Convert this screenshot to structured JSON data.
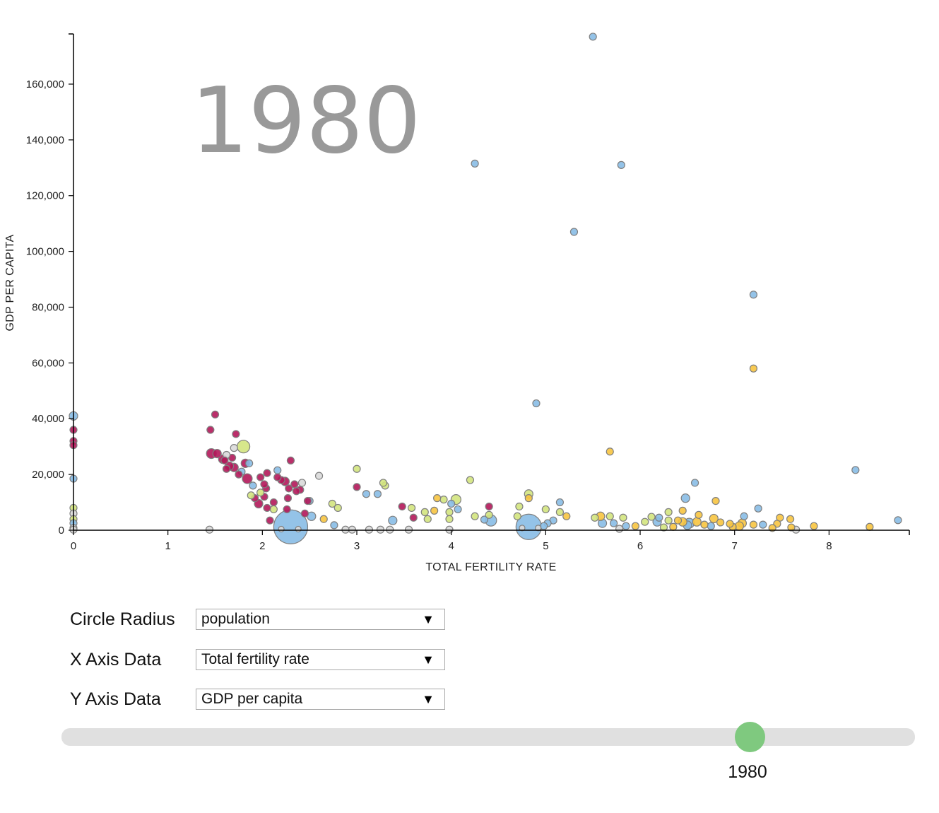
{
  "controls": {
    "radius": {
      "label": "Circle Radius",
      "value": "population"
    },
    "x_axis": {
      "label": "X Axis Data",
      "value": "Total fertility rate"
    },
    "y_axis": {
      "label": "Y Axis Data",
      "value": "GDP per capita"
    },
    "dropdown_icon": "caret-down-icon",
    "slider": {
      "value": "1980",
      "thumb_color": "#7fc97f",
      "track_color": "#e0e0e0"
    }
  },
  "chart_data": {
    "type": "scatter",
    "title": "1980",
    "xlabel": "TOTAL FERTILITY RATE",
    "ylabel": "GDP PER CAPITA",
    "xlim": [
      0,
      8.85
    ],
    "ylim": [
      0,
      178000
    ],
    "x_ticks": [
      0,
      1,
      2,
      3,
      4,
      5,
      6,
      7,
      8
    ],
    "y_ticks": [
      0,
      20000,
      40000,
      60000,
      80000,
      100000,
      120000,
      140000,
      160000
    ],
    "y_tick_labels": [
      "0",
      "20,000",
      "40,000",
      "60,000",
      "80,000",
      "100,000",
      "120,000",
      "140,000",
      "160,000"
    ],
    "grid": false,
    "legend": "none",
    "point_stroke": "#7f7f7f",
    "colors": {
      "blue": "#88bde6",
      "crimson": "#b2185a",
      "lime": "#d3e47e",
      "gray": "#d9d9d9",
      "yellow": "#f7c440"
    },
    "points": [
      {
        "x": 5.5,
        "y": 177000,
        "c": "blue",
        "r": 5
      },
      {
        "x": 4.25,
        "y": 131500,
        "c": "blue",
        "r": 5
      },
      {
        "x": 5.8,
        "y": 131000,
        "c": "blue",
        "r": 5
      },
      {
        "x": 5.3,
        "y": 107000,
        "c": "blue",
        "r": 5
      },
      {
        "x": 7.2,
        "y": 84500,
        "c": "blue",
        "r": 5
      },
      {
        "x": 7.2,
        "y": 58000,
        "c": "yellow",
        "r": 5
      },
      {
        "x": 4.9,
        "y": 45500,
        "c": "blue",
        "r": 5
      },
      {
        "x": 5.68,
        "y": 28200,
        "c": "yellow",
        "r": 5
      },
      {
        "x": 8.28,
        "y": 21600,
        "c": "blue",
        "r": 5
      },
      {
        "x": 8.73,
        "y": 3600,
        "c": "blue",
        "r": 5
      },
      {
        "x": 8.43,
        "y": 1200,
        "c": "yellow",
        "r": 5
      },
      {
        "x": 7.84,
        "y": 1500,
        "c": "yellow",
        "r": 5
      },
      {
        "x": 7.65,
        "y": 200,
        "c": "gray",
        "r": 5
      },
      {
        "x": 7.6,
        "y": 1000,
        "c": "yellow",
        "r": 5
      },
      {
        "x": 7.59,
        "y": 4000,
        "c": "yellow",
        "r": 5
      },
      {
        "x": 7.48,
        "y": 4500,
        "c": "yellow",
        "r": 5
      },
      {
        "x": 7.45,
        "y": 2300,
        "c": "yellow",
        "r": 5
      },
      {
        "x": 7.4,
        "y": 800,
        "c": "yellow",
        "r": 5
      },
      {
        "x": 7.3,
        "y": 2000,
        "c": "blue",
        "r": 5
      },
      {
        "x": 7.25,
        "y": 7800,
        "c": "blue",
        "r": 5
      },
      {
        "x": 7.2,
        "y": 2000,
        "c": "yellow",
        "r": 5
      },
      {
        "x": 7.1,
        "y": 5000,
        "c": "blue",
        "r": 5
      },
      {
        "x": 7.08,
        "y": 2500,
        "c": "yellow",
        "r": 6
      },
      {
        "x": 7.05,
        "y": 1500,
        "c": "yellow",
        "r": 6
      },
      {
        "x": 6.98,
        "y": 1200,
        "c": "yellow",
        "r": 5
      },
      {
        "x": 6.95,
        "y": 2300,
        "c": "yellow",
        "r": 5
      },
      {
        "x": 6.8,
        "y": 10500,
        "c": "yellow",
        "r": 5
      },
      {
        "x": 6.78,
        "y": 4200,
        "c": "yellow",
        "r": 6
      },
      {
        "x": 6.85,
        "y": 2800,
        "c": "yellow",
        "r": 5
      },
      {
        "x": 6.75,
        "y": 1500,
        "c": "blue",
        "r": 5
      },
      {
        "x": 6.68,
        "y": 2000,
        "c": "yellow",
        "r": 5
      },
      {
        "x": 6.62,
        "y": 5500,
        "c": "yellow",
        "r": 5
      },
      {
        "x": 6.6,
        "y": 3000,
        "c": "yellow",
        "r": 6
      },
      {
        "x": 6.58,
        "y": 17000,
        "c": "blue",
        "r": 5
      },
      {
        "x": 6.5,
        "y": 1800,
        "c": "blue",
        "r": 6
      },
      {
        "x": 6.48,
        "y": 11500,
        "c": "blue",
        "r": 6
      },
      {
        "x": 6.45,
        "y": 3000,
        "c": "yellow",
        "r": 6
      },
      {
        "x": 6.45,
        "y": 7000,
        "c": "yellow",
        "r": 5
      },
      {
        "x": 6.4,
        "y": 3500,
        "c": "yellow",
        "r": 5
      },
      {
        "x": 6.35,
        "y": 1200,
        "c": "yellow",
        "r": 5
      },
      {
        "x": 6.3,
        "y": 6500,
        "c": "lime",
        "r": 5
      },
      {
        "x": 6.3,
        "y": 3500,
        "c": "lime",
        "r": 5
      },
      {
        "x": 6.25,
        "y": 1000,
        "c": "lime",
        "r": 5
      },
      {
        "x": 6.2,
        "y": 4500,
        "c": "blue",
        "r": 5
      },
      {
        "x": 6.18,
        "y": 3000,
        "c": "blue",
        "r": 6
      },
      {
        "x": 6.12,
        "y": 4800,
        "c": "lime",
        "r": 5
      },
      {
        "x": 6.05,
        "y": 3000,
        "c": "lime",
        "r": 5
      },
      {
        "x": 5.95,
        "y": 1500,
        "c": "yellow",
        "r": 5
      },
      {
        "x": 5.85,
        "y": 1500,
        "c": "blue",
        "r": 5
      },
      {
        "x": 5.82,
        "y": 4500,
        "c": "lime",
        "r": 5
      },
      {
        "x": 5.78,
        "y": 500,
        "c": "gray",
        "r": 5
      },
      {
        "x": 5.72,
        "y": 2500,
        "c": "blue",
        "r": 5
      },
      {
        "x": 5.68,
        "y": 5000,
        "c": "lime",
        "r": 5
      },
      {
        "x": 5.6,
        "y": 2500,
        "c": "blue",
        "r": 6
      },
      {
        "x": 5.58,
        "y": 5000,
        "c": "yellow",
        "r": 6
      },
      {
        "x": 5.52,
        "y": 4500,
        "c": "lime",
        "r": 5
      },
      {
        "x": 6.52,
        "y": 2500,
        "c": "blue",
        "r": 7
      },
      {
        "x": 4.82,
        "y": 1200,
        "c": "blue",
        "r": 18
      },
      {
        "x": 4.75,
        "y": 800,
        "c": "gray",
        "r": 4
      },
      {
        "x": 4.92,
        "y": 800,
        "c": "gray",
        "r": 4
      },
      {
        "x": 5.22,
        "y": 5000,
        "c": "yellow",
        "r": 5
      },
      {
        "x": 5.15,
        "y": 6500,
        "c": "lime",
        "r": 5
      },
      {
        "x": 5.15,
        "y": 10000,
        "c": "blue",
        "r": 5
      },
      {
        "x": 5.08,
        "y": 3500,
        "c": "blue",
        "r": 5
      },
      {
        "x": 5.02,
        "y": 2500,
        "c": "blue",
        "r": 5
      },
      {
        "x": 4.98,
        "y": 1500,
        "c": "blue",
        "r": 5
      },
      {
        "x": 5.0,
        "y": 7500,
        "c": "lime",
        "r": 5
      },
      {
        "x": 4.82,
        "y": 13000,
        "c": "lime",
        "r": 6
      },
      {
        "x": 4.82,
        "y": 11500,
        "c": "yellow",
        "r": 5
      },
      {
        "x": 4.72,
        "y": 8500,
        "c": "lime",
        "r": 5
      },
      {
        "x": 4.7,
        "y": 5000,
        "c": "lime",
        "r": 5
      },
      {
        "x": 4.42,
        "y": 3500,
        "c": "blue",
        "r": 8
      },
      {
        "x": 4.35,
        "y": 3800,
        "c": "blue",
        "r": 5
      },
      {
        "x": 4.4,
        "y": 5500,
        "c": "lime",
        "r": 5
      },
      {
        "x": 4.4,
        "y": 8500,
        "c": "crimson",
        "r": 5
      },
      {
        "x": 4.2,
        "y": 18000,
        "c": "lime",
        "r": 5
      },
      {
        "x": 4.25,
        "y": 5000,
        "c": "lime",
        "r": 5
      },
      {
        "x": 4.05,
        "y": 11000,
        "c": "lime",
        "r": 7
      },
      {
        "x": 4.07,
        "y": 7500,
        "c": "blue",
        "r": 5
      },
      {
        "x": 4.0,
        "y": 9500,
        "c": "blue",
        "r": 5
      },
      {
        "x": 3.98,
        "y": 6500,
        "c": "lime",
        "r": 5
      },
      {
        "x": 3.98,
        "y": 4000,
        "c": "lime",
        "r": 5
      },
      {
        "x": 3.92,
        "y": 11000,
        "c": "lime",
        "r": 5
      },
      {
        "x": 3.85,
        "y": 11500,
        "c": "yellow",
        "r": 5
      },
      {
        "x": 3.82,
        "y": 7000,
        "c": "yellow",
        "r": 5
      },
      {
        "x": 3.75,
        "y": 4000,
        "c": "lime",
        "r": 5
      },
      {
        "x": 3.72,
        "y": 6500,
        "c": "lime",
        "r": 5
      },
      {
        "x": 3.98,
        "y": 200,
        "c": "gray",
        "r": 5
      },
      {
        "x": 3.58,
        "y": 8000,
        "c": "lime",
        "r": 5
      },
      {
        "x": 3.6,
        "y": 4500,
        "c": "crimson",
        "r": 5
      },
      {
        "x": 3.48,
        "y": 8500,
        "c": "crimson",
        "r": 5
      },
      {
        "x": 3.55,
        "y": 200,
        "c": "gray",
        "r": 5
      },
      {
        "x": 3.38,
        "y": 3500,
        "c": "blue",
        "r": 6
      },
      {
        "x": 3.35,
        "y": 200,
        "c": "gray",
        "r": 5
      },
      {
        "x": 3.3,
        "y": 16000,
        "c": "lime",
        "r": 5
      },
      {
        "x": 3.28,
        "y": 17000,
        "c": "lime",
        "r": 5
      },
      {
        "x": 3.22,
        "y": 13000,
        "c": "blue",
        "r": 5
      },
      {
        "x": 3.25,
        "y": 200,
        "c": "gray",
        "r": 5
      },
      {
        "x": 3.1,
        "y": 13000,
        "c": "blue",
        "r": 5
      },
      {
        "x": 3.13,
        "y": 200,
        "c": "gray",
        "r": 5
      },
      {
        "x": 3.0,
        "y": 22000,
        "c": "lime",
        "r": 5
      },
      {
        "x": 3.0,
        "y": 15500,
        "c": "crimson",
        "r": 5
      },
      {
        "x": 2.95,
        "y": 200,
        "c": "gray",
        "r": 5
      },
      {
        "x": 2.88,
        "y": 200,
        "c": "gray",
        "r": 5
      },
      {
        "x": 2.8,
        "y": 8000,
        "c": "lime",
        "r": 5
      },
      {
        "x": 2.74,
        "y": 9500,
        "c": "lime",
        "r": 5
      },
      {
        "x": 2.76,
        "y": 1800,
        "c": "blue",
        "r": 5
      },
      {
        "x": 2.65,
        "y": 4000,
        "c": "yellow",
        "r": 5
      },
      {
        "x": 2.6,
        "y": 19500,
        "c": "gray",
        "r": 5
      },
      {
        "x": 2.52,
        "y": 5000,
        "c": "blue",
        "r": 6
      },
      {
        "x": 2.5,
        "y": 10500,
        "c": "blue",
        "r": 5
      },
      {
        "x": 2.48,
        "y": 10500,
        "c": "crimson",
        "r": 5
      },
      {
        "x": 2.45,
        "y": 6000,
        "c": "crimson",
        "r": 5
      },
      {
        "x": 2.42,
        "y": 17000,
        "c": "gray",
        "r": 5
      },
      {
        "x": 2.4,
        "y": 14500,
        "c": "crimson",
        "r": 5
      },
      {
        "x": 2.36,
        "y": 14000,
        "c": "crimson",
        "r": 5
      },
      {
        "x": 2.34,
        "y": 16500,
        "c": "crimson",
        "r": 5
      },
      {
        "x": 2.3,
        "y": 1200,
        "c": "blue",
        "r": 24
      },
      {
        "x": 2.2,
        "y": 400,
        "c": "gray",
        "r": 4
      },
      {
        "x": 2.38,
        "y": 400,
        "c": "gray",
        "r": 4
      },
      {
        "x": 2.3,
        "y": 25000,
        "c": "crimson",
        "r": 5
      },
      {
        "x": 2.28,
        "y": 15000,
        "c": "crimson",
        "r": 5
      },
      {
        "x": 2.27,
        "y": 11500,
        "c": "crimson",
        "r": 5
      },
      {
        "x": 2.26,
        "y": 7500,
        "c": "crimson",
        "r": 5
      },
      {
        "x": 2.24,
        "y": 17500,
        "c": "crimson",
        "r": 6
      },
      {
        "x": 2.2,
        "y": 18000,
        "c": "crimson",
        "r": 5
      },
      {
        "x": 2.16,
        "y": 21500,
        "c": "blue",
        "r": 5
      },
      {
        "x": 2.16,
        "y": 19000,
        "c": "crimson",
        "r": 5
      },
      {
        "x": 2.12,
        "y": 10000,
        "c": "crimson",
        "r": 5
      },
      {
        "x": 2.12,
        "y": 7500,
        "c": "lime",
        "r": 5
      },
      {
        "x": 2.08,
        "y": 3500,
        "c": "crimson",
        "r": 5
      },
      {
        "x": 2.05,
        "y": 8000,
        "c": "crimson",
        "r": 5
      },
      {
        "x": 2.05,
        "y": 20500,
        "c": "crimson",
        "r": 5
      },
      {
        "x": 2.04,
        "y": 15000,
        "c": "crimson",
        "r": 5
      },
      {
        "x": 2.02,
        "y": 12000,
        "c": "crimson",
        "r": 5
      },
      {
        "x": 2.02,
        "y": 16500,
        "c": "crimson",
        "r": 5
      },
      {
        "x": 1.98,
        "y": 19000,
        "c": "crimson",
        "r": 5
      },
      {
        "x": 1.98,
        "y": 13500,
        "c": "lime",
        "r": 5
      },
      {
        "x": 1.96,
        "y": 9500,
        "c": "crimson",
        "r": 6
      },
      {
        "x": 1.92,
        "y": 11500,
        "c": "crimson",
        "r": 5
      },
      {
        "x": 1.88,
        "y": 12500,
        "c": "lime",
        "r": 5
      },
      {
        "x": 1.9,
        "y": 16000,
        "c": "blue",
        "r": 5
      },
      {
        "x": 1.86,
        "y": 24000,
        "c": "blue",
        "r": 5
      },
      {
        "x": 1.84,
        "y": 18500,
        "c": "crimson",
        "r": 7
      },
      {
        "x": 1.82,
        "y": 24000,
        "c": "crimson",
        "r": 6
      },
      {
        "x": 1.8,
        "y": 30000,
        "c": "lime",
        "r": 9
      },
      {
        "x": 1.78,
        "y": 21000,
        "c": "blue",
        "r": 5
      },
      {
        "x": 1.75,
        "y": 20000,
        "c": "crimson",
        "r": 5
      },
      {
        "x": 1.72,
        "y": 34500,
        "c": "crimson",
        "r": 5
      },
      {
        "x": 1.7,
        "y": 22500,
        "c": "crimson",
        "r": 6
      },
      {
        "x": 1.7,
        "y": 29500,
        "c": "gray",
        "r": 5
      },
      {
        "x": 1.68,
        "y": 26000,
        "c": "crimson",
        "r": 5
      },
      {
        "x": 1.65,
        "y": 23000,
        "c": "crimson",
        "r": 6
      },
      {
        "x": 1.62,
        "y": 27000,
        "c": "gray",
        "r": 5
      },
      {
        "x": 1.6,
        "y": 25000,
        "c": "crimson",
        "r": 5
      },
      {
        "x": 1.58,
        "y": 25500,
        "c": "crimson",
        "r": 6
      },
      {
        "x": 1.62,
        "y": 22000,
        "c": "crimson",
        "r": 5
      },
      {
        "x": 1.52,
        "y": 27500,
        "c": "crimson",
        "r": 6
      },
      {
        "x": 1.5,
        "y": 41500,
        "c": "crimson",
        "r": 5
      },
      {
        "x": 1.46,
        "y": 27500,
        "c": "crimson",
        "r": 7
      },
      {
        "x": 1.45,
        "y": 36000,
        "c": "crimson",
        "r": 5
      },
      {
        "x": 1.44,
        "y": 200,
        "c": "gray",
        "r": 5
      },
      {
        "x": 0,
        "y": 41000,
        "c": "blue",
        "r": 6
      },
      {
        "x": 0,
        "y": 36000,
        "c": "crimson",
        "r": 5
      },
      {
        "x": 0,
        "y": 32000,
        "c": "crimson",
        "r": 5
      },
      {
        "x": 0,
        "y": 30500,
        "c": "crimson",
        "r": 5
      },
      {
        "x": 0,
        "y": 18500,
        "c": "blue",
        "r": 5
      },
      {
        "x": 0,
        "y": 8000,
        "c": "lime",
        "r": 5
      },
      {
        "x": 0,
        "y": 6000,
        "c": "gray",
        "r": 5
      },
      {
        "x": 0,
        "y": 4000,
        "c": "lime",
        "r": 5
      },
      {
        "x": 0,
        "y": 2500,
        "c": "blue",
        "r": 5
      },
      {
        "x": 0,
        "y": 800,
        "c": "gray",
        "r": 5
      },
      {
        "x": 0,
        "y": 200,
        "c": "gray",
        "r": 5
      }
    ]
  }
}
